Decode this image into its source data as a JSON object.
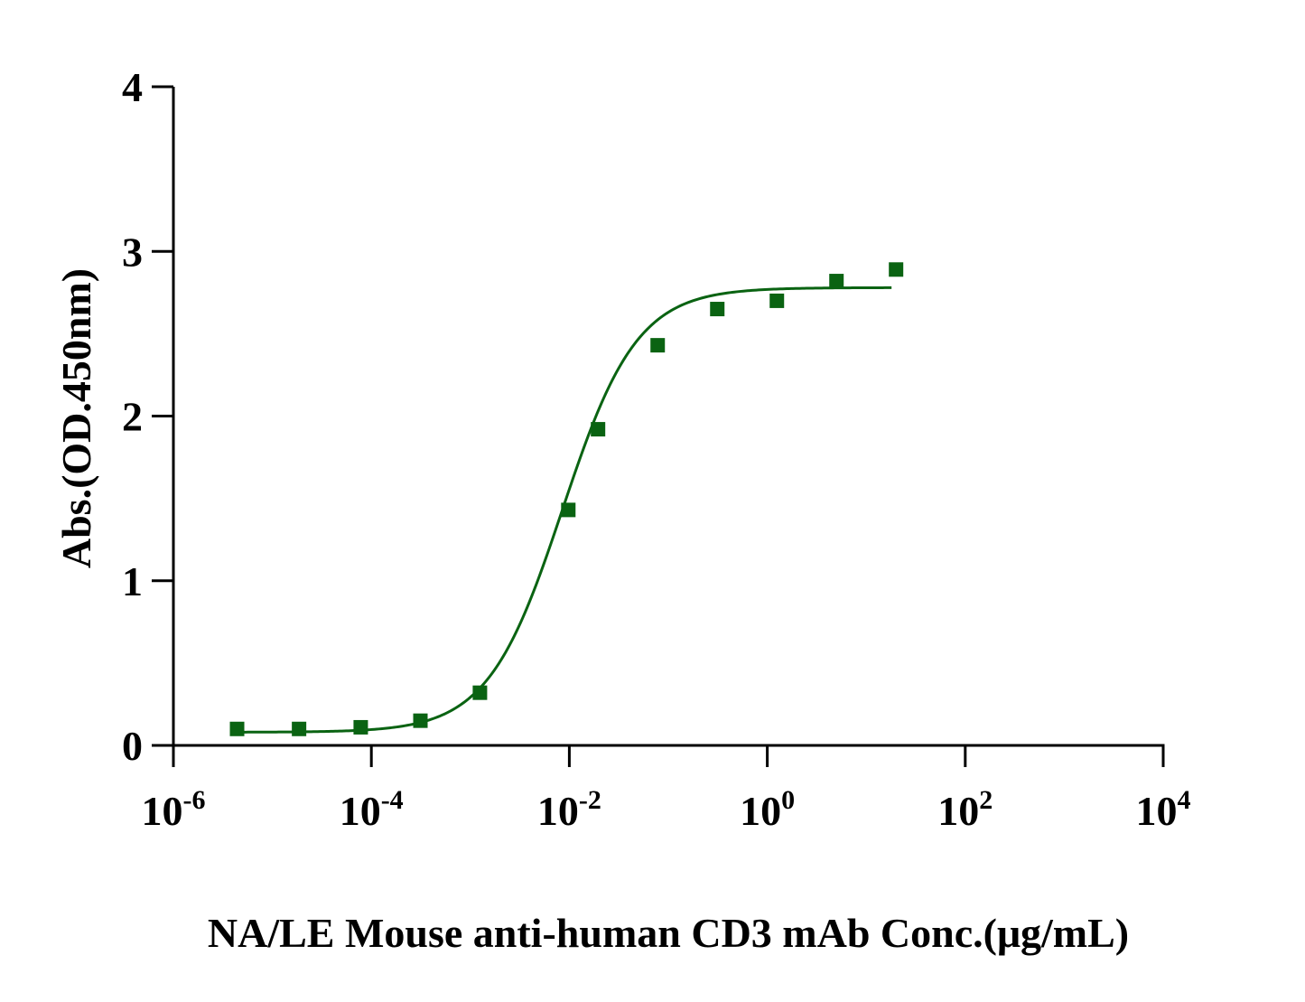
{
  "chart_data": {
    "type": "scatter",
    "title": "",
    "xlabel": "NA/LE Mouse anti-human CD3 mAb Conc.(μg/mL)",
    "ylabel": "Abs.(OD.450nm)",
    "xscale": "log",
    "xlim": [
      1e-06,
      10000
    ],
    "ylim": [
      0,
      4
    ],
    "x_ticks": [
      {
        "base": "10",
        "exp": "-6",
        "value": 1e-06
      },
      {
        "base": "10",
        "exp": "-4",
        "value": 0.0001
      },
      {
        "base": "10",
        "exp": "-2",
        "value": 0.01
      },
      {
        "base": "10",
        "exp": "0",
        "value": 1
      },
      {
        "base": "10",
        "exp": "2",
        "value": 100
      },
      {
        "base": "10",
        "exp": "4",
        "value": 10000
      }
    ],
    "y_ticks": [
      "0",
      "1",
      "2",
      "3",
      "4"
    ],
    "grid": false,
    "legend": "none",
    "color": "#0a6312",
    "series": [
      {
        "marker": "square",
        "x": [
          4.4e-06,
          1.86e-05,
          7.81e-05,
          0.000313,
          0.00125,
          0.00977,
          0.0195,
          0.0781,
          0.3125,
          1.25,
          5,
          20
        ],
        "y": [
          0.1,
          0.1,
          0.11,
          0.15,
          0.32,
          1.43,
          1.92,
          2.43,
          2.65,
          2.7,
          2.82,
          2.89
        ]
      }
    ],
    "fit": {
      "type": "4PL",
      "bottom": 0.08,
      "top": 2.78,
      "ec50": 0.0085,
      "hill": 1.15,
      "x_range": [
        4.4e-06,
        18
      ]
    }
  }
}
